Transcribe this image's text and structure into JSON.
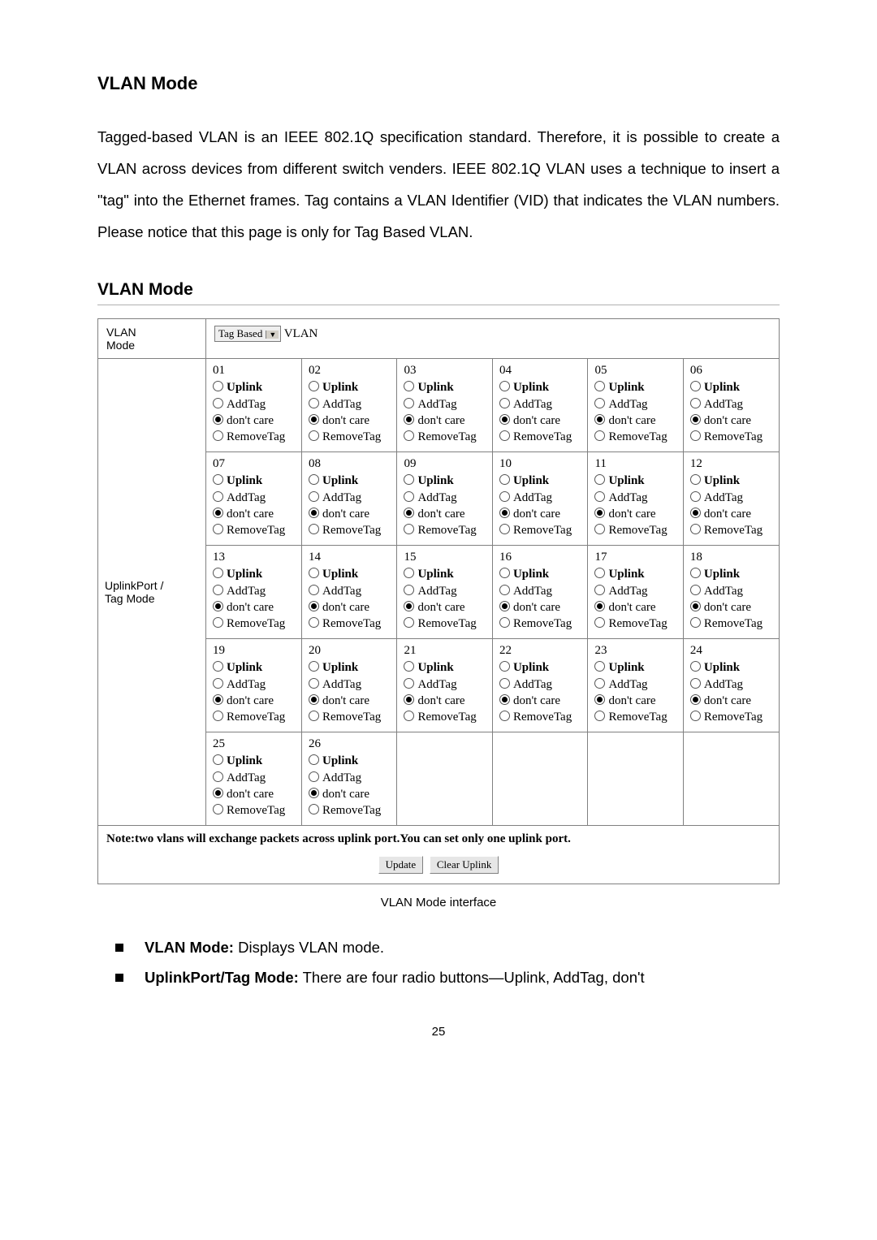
{
  "heading": "VLAN Mode",
  "paragraph": "Tagged-based VLAN is an IEEE 802.1Q specification standard. Therefore, it is possible to create a VLAN across devices from different switch venders. IEEE 802.1Q VLAN uses a technique to insert a \"tag\" into the Ethernet frames. Tag contains a VLAN Identifier (VID) that indicates the VLAN numbers. Please notice that this page is only for Tag Based VLAN.",
  "section_title": "VLAN Mode",
  "table": {
    "mode_row": {
      "label": "VLAN\nMode",
      "select_value": "Tag Based",
      "suffix": " VLAN"
    },
    "rowlabel": "UplinkPort /\nTag Mode",
    "options": [
      "Uplink",
      "AddTag",
      "don't care",
      "RemoveTag"
    ],
    "default_selected_index": 2,
    "port_count": 26,
    "columns_per_row": 6,
    "note": "Note:two vlans will exchange packets across uplink port.You can set only one uplink port.",
    "buttons": {
      "update": "Update",
      "clear": "Clear Uplink"
    }
  },
  "caption": "VLAN Mode interface",
  "bullets": [
    {
      "bold": "VLAN Mode:",
      "rest": " Displays VLAN mode."
    },
    {
      "bold": "UplinkPort/Tag Mode:",
      "rest": " There are four radio buttons—Uplink, AddTag, don't"
    }
  ],
  "page_number": "25",
  "style": {
    "body_font": "Arial",
    "table_font": "Times New Roman",
    "border_color": "#808080",
    "button_bg": "#e6e6e6"
  }
}
